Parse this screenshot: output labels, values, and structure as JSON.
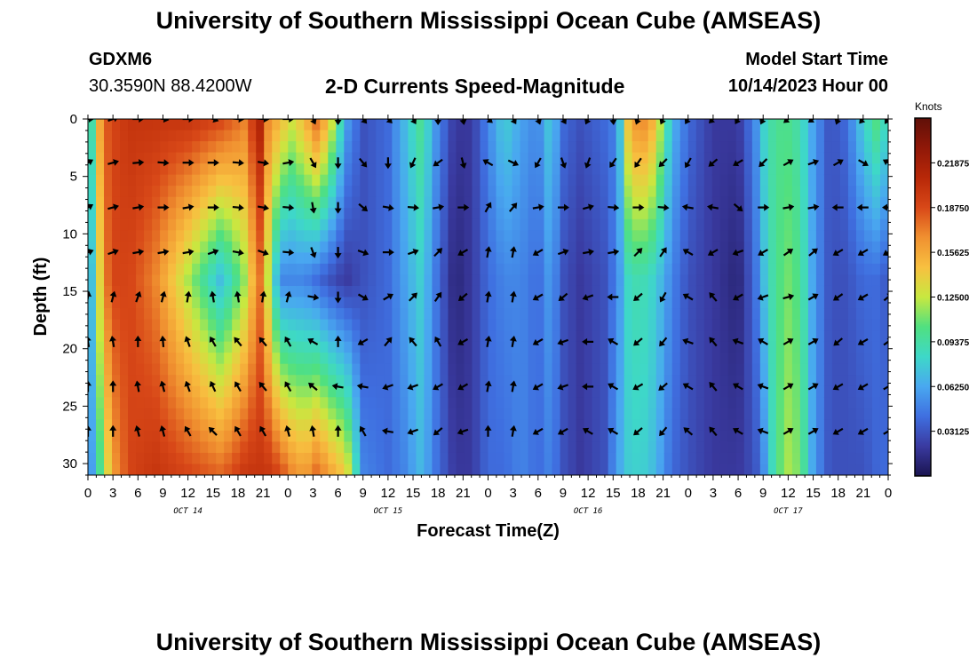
{
  "header": {
    "main_title": "University of Southern Mississippi Ocean Cube (AMSEAS)",
    "station": "GDXM6",
    "coordinates": "30.3590N  88.4200W",
    "subtitle": "2-D Currents Speed-Magnitude",
    "start_label": "Model Start Time",
    "start_time": "10/14/2023 Hour 00"
  },
  "footer": {
    "repeat_title": "University of Southern Mississippi Ocean Cube (AMSEAS)"
  },
  "chart_data": {
    "type": "heatmap",
    "title": "2-D Currents Speed-Magnitude",
    "xlabel": "Forecast Time(Z)",
    "ylabel": "Depth (ft)",
    "units": "Knots",
    "x_range_hours": [
      0,
      96
    ],
    "ylim": [
      0,
      31
    ],
    "y_inverted": true,
    "x_tick_labels": [
      "0",
      "3",
      "6",
      "9",
      "12",
      "15",
      "18",
      "21",
      "0",
      "3",
      "6",
      "9",
      "12",
      "15",
      "18",
      "21",
      "0",
      "3",
      "6",
      "9",
      "12",
      "15",
      "18",
      "21",
      "0",
      "3",
      "6",
      "9",
      "12",
      "15",
      "18",
      "21",
      "0"
    ],
    "date_labels": [
      {
        "label": "OCT 14",
        "hour": 12
      },
      {
        "label": "OCT 15",
        "hour": 36
      },
      {
        "label": "OCT 16",
        "hour": 60
      },
      {
        "label": "OCT 17",
        "hour": 84
      }
    ],
    "y_tick_labels": [
      "0",
      "5",
      "10",
      "15",
      "20",
      "25",
      "30"
    ],
    "colorbar": {
      "range": [
        0,
        0.25
      ],
      "tick_labels": [
        "0.03125",
        "0.06250",
        "0.09375",
        "0.12500",
        "0.15625",
        "0.18750",
        "0.21875"
      ],
      "colors": [
        "#1a1450",
        "#3a3aa0",
        "#3f6fe0",
        "#49a8f0",
        "#3ed8c8",
        "#50e080",
        "#c8e840",
        "#f8c040",
        "#f09030",
        "#d84818",
        "#b82808",
        "#901808",
        "#601008"
      ]
    },
    "speed_profile": {
      "hours": [
        0,
        1,
        2,
        3,
        5,
        8,
        12,
        16,
        19,
        20.5,
        21.5,
        23,
        24.5,
        26,
        27.5,
        29,
        31,
        33,
        36,
        38,
        40,
        42,
        44,
        46,
        48,
        50,
        52,
        54,
        55.5,
        57,
        59,
        62,
        63.5,
        65,
        66.5,
        68,
        70,
        72,
        75,
        78,
        80,
        81,
        82.5,
        84,
        85.5,
        87,
        89,
        91,
        93,
        95,
        96
      ],
      "surface": [
        0.05,
        0.14,
        0.18,
        0.19,
        0.2,
        0.2,
        0.2,
        0.19,
        0.17,
        0.22,
        0.17,
        0.15,
        0.13,
        0.15,
        0.18,
        0.14,
        0.06,
        0.03,
        0.04,
        0.07,
        0.1,
        0.05,
        0.02,
        0.02,
        0.05,
        0.08,
        0.06,
        0.05,
        0.08,
        0.04,
        0.03,
        0.04,
        0.05,
        0.16,
        0.17,
        0.15,
        0.07,
        0.04,
        0.02,
        0.02,
        0.05,
        0.08,
        0.1,
        0.1,
        0.09,
        0.06,
        0.03,
        0.04,
        0.08,
        0.11,
        0.07
      ],
      "mid": [
        0.04,
        0.11,
        0.17,
        0.19,
        0.19,
        0.17,
        0.12,
        0.07,
        0.12,
        0.18,
        0.13,
        0.05,
        0.05,
        0.05,
        0.04,
        0.03,
        0.02,
        0.03,
        0.04,
        0.06,
        0.08,
        0.04,
        0.01,
        0.02,
        0.04,
        0.05,
        0.05,
        0.04,
        0.06,
        0.03,
        0.02,
        0.03,
        0.05,
        0.09,
        0.09,
        0.08,
        0.05,
        0.03,
        0.02,
        0.01,
        0.04,
        0.07,
        0.1,
        0.11,
        0.1,
        0.06,
        0.03,
        0.03,
        0.04,
        0.04,
        0.03
      ],
      "deep": [
        0.04,
        0.08,
        0.12,
        0.16,
        0.19,
        0.2,
        0.19,
        0.18,
        0.2,
        0.2,
        0.2,
        0.19,
        0.17,
        0.16,
        0.18,
        0.16,
        0.14,
        0.05,
        0.04,
        0.05,
        0.07,
        0.04,
        0.02,
        0.02,
        0.04,
        0.04,
        0.05,
        0.04,
        0.05,
        0.03,
        0.02,
        0.03,
        0.06,
        0.08,
        0.08,
        0.07,
        0.04,
        0.03,
        0.02,
        0.02,
        0.03,
        0.05,
        0.1,
        0.12,
        0.11,
        0.06,
        0.03,
        0.03,
        0.03,
        0.04,
        0.04
      ]
    },
    "vector_depths": [
      0,
      3.8,
      7.7,
      11.6,
      15.5,
      19.4,
      23.3,
      27.2
    ],
    "vector_directions": [
      [
        90,
        70,
        90,
        100,
        90,
        110,
        95,
        95,
        90,
        155,
        180,
        140,
        135,
        150,
        180,
        170,
        130,
        150,
        160,
        150,
        205,
        175,
        200,
        205,
        210,
        225,
        210,
        205,
        230,
        235,
        200,
        220,
        215
      ],
      [
        60,
        75,
        85,
        95,
        90,
        90,
        95,
        100,
        80,
        150,
        180,
        140,
        180,
        205,
        235,
        165,
        300,
        115,
        210,
        160,
        200,
        215,
        215,
        225,
        210,
        230,
        240,
        225,
        60,
        70,
        60,
        120,
        300
      ],
      [
        60,
        75,
        80,
        90,
        80,
        90,
        95,
        100,
        95,
        170,
        180,
        130,
        100,
        95,
        80,
        90,
        30,
        40,
        80,
        90,
        75,
        95,
        90,
        95,
        280,
        280,
        130,
        90,
        80,
        80,
        270,
        270,
        270
      ],
      [
        70,
        70,
        80,
        80,
        80,
        70,
        100,
        110,
        95,
        160,
        180,
        110,
        90,
        70,
        45,
        240,
        10,
        10,
        240,
        70,
        80,
        80,
        45,
        35,
        300,
        240,
        250,
        240,
        55,
        50,
        240,
        240,
        240
      ],
      [
        10,
        15,
        20,
        15,
        10,
        350,
        350,
        10,
        15,
        100,
        180,
        120,
        60,
        45,
        35,
        230,
        10,
        10,
        240,
        230,
        250,
        270,
        230,
        210,
        300,
        320,
        240,
        250,
        75,
        60,
        235,
        240,
        50
      ],
      [
        350,
        350,
        0,
        355,
        340,
        330,
        320,
        320,
        330,
        300,
        0,
        240,
        40,
        320,
        330,
        240,
        10,
        10,
        240,
        250,
        270,
        300,
        230,
        220,
        290,
        320,
        290,
        300,
        60,
        60,
        230,
        240,
        55
      ],
      [
        0,
        0,
        350,
        345,
        340,
        335,
        330,
        320,
        330,
        310,
        280,
        280,
        250,
        250,
        240,
        240,
        10,
        10,
        240,
        250,
        270,
        300,
        240,
        230,
        300,
        320,
        300,
        290,
        60,
        60,
        240,
        240,
        60
      ],
      [
        0,
        0,
        345,
        345,
        330,
        315,
        330,
        330,
        345,
        350,
        0,
        330,
        280,
        250,
        230,
        250,
        0,
        10,
        240,
        240,
        300,
        300,
        230,
        220,
        310,
        320,
        300,
        290,
        60,
        60,
        240,
        240,
        60
      ]
    ]
  }
}
